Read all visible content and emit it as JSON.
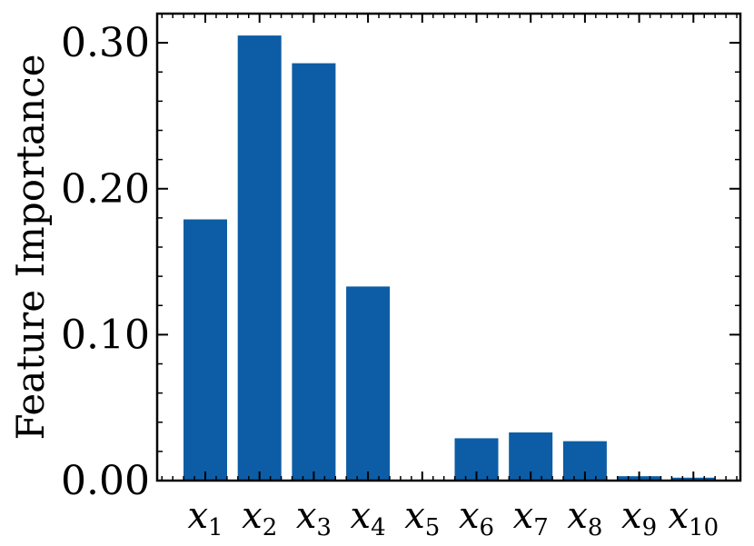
{
  "chart_data": {
    "type": "bar",
    "categories": [
      {
        "base": "x",
        "sub": "1"
      },
      {
        "base": "x",
        "sub": "2"
      },
      {
        "base": "x",
        "sub": "3"
      },
      {
        "base": "x",
        "sub": "4"
      },
      {
        "base": "x",
        "sub": "5"
      },
      {
        "base": "x",
        "sub": "6"
      },
      {
        "base": "x",
        "sub": "7"
      },
      {
        "base": "x",
        "sub": "8"
      },
      {
        "base": "x",
        "sub": "9"
      },
      {
        "base": "x",
        "sub": "10"
      }
    ],
    "values": [
      0.179,
      0.305,
      0.286,
      0.133,
      0.0,
      0.029,
      0.033,
      0.027,
      0.003,
      0.002
    ],
    "title": "",
    "xlabel": "",
    "ylabel": "Feature Importance",
    "ylim": [
      0,
      0.32
    ],
    "yticks": [
      {
        "value": 0.0,
        "label": "0.00"
      },
      {
        "value": 0.1,
        "label": "0.10"
      },
      {
        "value": 0.2,
        "label": "0.20"
      },
      {
        "value": 0.3,
        "label": "0.30"
      }
    ],
    "bar_color": "#0C5DA5",
    "grid": false
  }
}
